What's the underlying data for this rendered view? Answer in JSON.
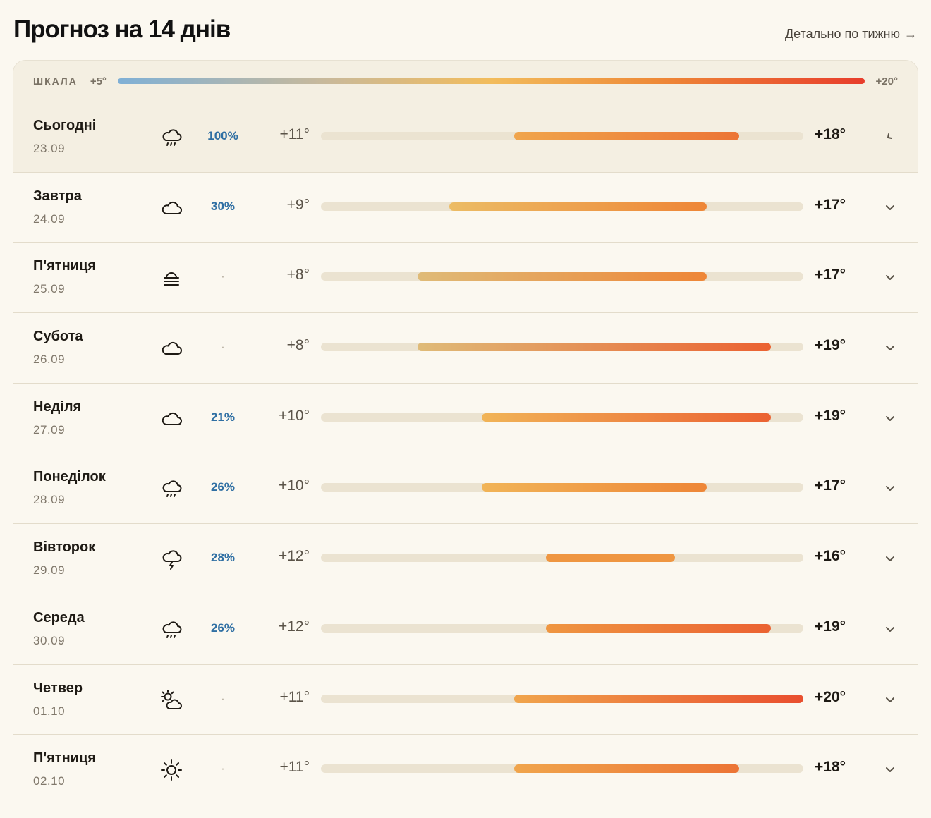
{
  "header": {
    "title": "Прогноз на 14 днів",
    "week_link": "Детально по тижню",
    "week_link_arrow": "→"
  },
  "scale": {
    "label": "ШКАЛА",
    "min_label": "+5°",
    "max_label": "+20°",
    "min": 5,
    "max": 20
  },
  "days": [
    {
      "name": "Сьогодні",
      "date": "23.09",
      "icon": "rain-icon",
      "precip": "100%",
      "tmin_label": "+11°",
      "tmax_label": "+18°",
      "tmin": 11,
      "tmax": 18,
      "today": true
    },
    {
      "name": "Завтра",
      "date": "24.09",
      "icon": "cloud-icon",
      "precip": "30%",
      "tmin_label": "+9°",
      "tmax_label": "+17°",
      "tmin": 9,
      "tmax": 17
    },
    {
      "name": "П'ятниця",
      "date": "25.09",
      "icon": "fog-icon",
      "precip": "·",
      "tmin_label": "+8°",
      "tmax_label": "+17°",
      "tmin": 8,
      "tmax": 17
    },
    {
      "name": "Субота",
      "date": "26.09",
      "icon": "cloud-icon",
      "precip": "·",
      "tmin_label": "+8°",
      "tmax_label": "+19°",
      "tmin": 8,
      "tmax": 19
    },
    {
      "name": "Неділя",
      "date": "27.09",
      "icon": "cloud-icon",
      "precip": "21%",
      "tmin_label": "+10°",
      "tmax_label": "+19°",
      "tmin": 10,
      "tmax": 19
    },
    {
      "name": "Понеділок",
      "date": "28.09",
      "icon": "rain-icon",
      "precip": "26%",
      "tmin_label": "+10°",
      "tmax_label": "+17°",
      "tmin": 10,
      "tmax": 17
    },
    {
      "name": "Вівторок",
      "date": "29.09",
      "icon": "thunderstorm-icon",
      "precip": "28%",
      "tmin_label": "+12°",
      "tmax_label": "+16°",
      "tmin": 12,
      "tmax": 16
    },
    {
      "name": "Середа",
      "date": "30.09",
      "icon": "rain-icon",
      "precip": "26%",
      "tmin_label": "+12°",
      "tmax_label": "+19°",
      "tmin": 12,
      "tmax": 19
    },
    {
      "name": "Четвер",
      "date": "01.10",
      "icon": "partly-cloudy-icon",
      "precip": "·",
      "tmin_label": "+11°",
      "tmax_label": "+20°",
      "tmin": 11,
      "tmax": 20
    },
    {
      "name": "П'ятниця",
      "date": "02.10",
      "icon": "sun-icon",
      "precip": "·",
      "tmin_label": "+11°",
      "tmax_label": "+18°",
      "tmin": 11,
      "tmax": 18
    }
  ]
}
